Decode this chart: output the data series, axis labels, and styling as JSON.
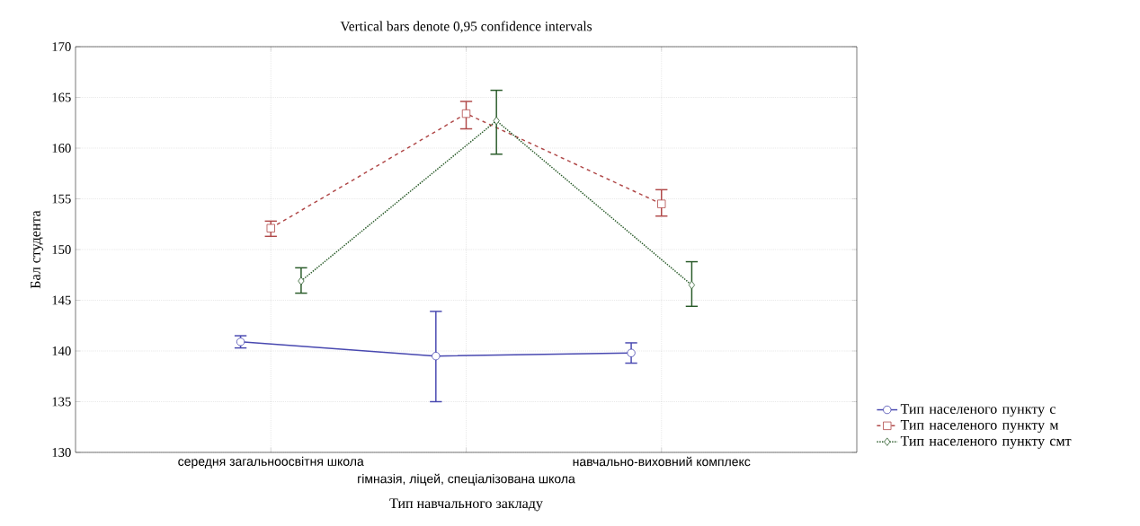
{
  "chart_data": {
    "type": "line",
    "title": "Vertical bars denote 0,95 confidence intervals",
    "xlabel": "Тип навчального закладу",
    "ylabel": "Бал студента",
    "categories": [
      "середня загальноосвітня школа",
      "гімназія, ліцей, спеціалізована школа",
      "навчально-виховний комплекс"
    ],
    "ylim": [
      130,
      170
    ],
    "yticks": [
      130,
      135,
      140,
      145,
      150,
      155,
      160,
      165,
      170
    ],
    "grid": true,
    "legend": "bottom right",
    "series": [
      {
        "name": "Тип населеного пункту с",
        "color": "#4848b0",
        "marker": "circle",
        "line_style": "solid",
        "values": [
          140.9,
          139.5,
          139.8
        ],
        "errors": [
          [
            140.3,
            141.5
          ],
          [
            135.0,
            143.9
          ],
          [
            138.8,
            140.8
          ]
        ]
      },
      {
        "name": "Тип населеного пункту м",
        "color": "#b04848",
        "marker": "square",
        "line_style": "dashed",
        "values": [
          152.1,
          163.4,
          154.5
        ],
        "errors": [
          [
            151.3,
            152.8
          ],
          [
            161.9,
            164.6
          ],
          [
            153.3,
            155.9
          ]
        ]
      },
      {
        "name": "Тип населеного пункту смт",
        "color": "#285a28",
        "marker": "diamond",
        "line_style": "dotted",
        "values": [
          146.9,
          162.7,
          146.5
        ],
        "errors": [
          [
            145.7,
            148.2
          ],
          [
            159.4,
            165.7
          ],
          [
            144.4,
            148.8
          ]
        ]
      }
    ]
  }
}
